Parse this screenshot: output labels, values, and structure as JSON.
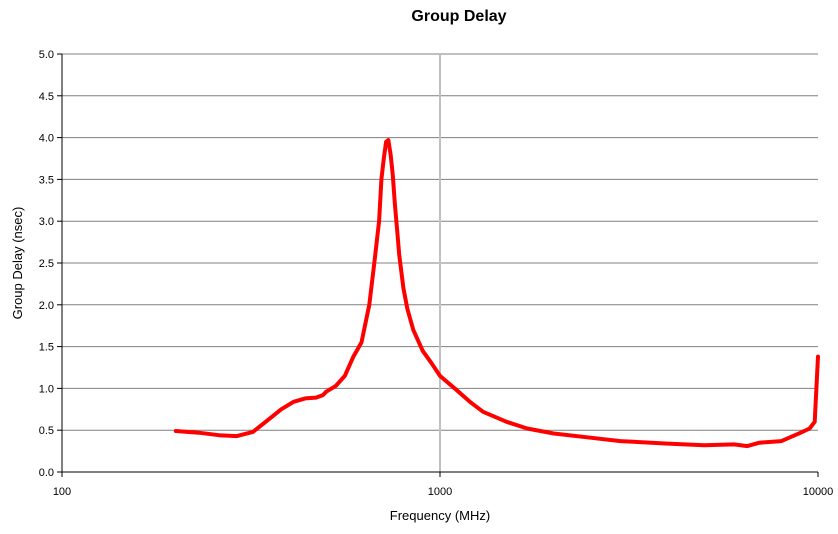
{
  "chart_data": {
    "type": "line",
    "title": "Group Delay",
    "xlabel": "Frequency (MHz)",
    "ylabel": "Group Delay (nsec)",
    "x_scale": "log",
    "xlim": [
      100,
      10000
    ],
    "ylim": [
      0,
      5
    ],
    "x_ticks": [
      "100",
      "1000",
      "10000"
    ],
    "y_ticks": [
      "0.0",
      "0.5",
      "1.0",
      "1.5",
      "2.0",
      "2.5",
      "3.0",
      "3.5",
      "4.0",
      "4.5",
      "5.0"
    ],
    "grid": "horizontal",
    "accent_color": "#ff0000",
    "series": [
      {
        "color": "#ff0000",
        "x": [
          200,
          230,
          260,
          290,
          320,
          350,
          380,
          410,
          440,
          470,
          490,
          500,
          530,
          560,
          590,
          620,
          650,
          670,
          690,
          700,
          710,
          720,
          730,
          740,
          750,
          760,
          770,
          780,
          800,
          820,
          850,
          900,
          950,
          1000,
          1100,
          1200,
          1300,
          1500,
          1700,
          2000,
          2500,
          3000,
          4000,
          5000,
          6000,
          6500,
          7000,
          8000,
          9000,
          9500,
          9800,
          10000
        ],
        "y": [
          0.49,
          0.47,
          0.44,
          0.43,
          0.48,
          0.62,
          0.75,
          0.84,
          0.88,
          0.89,
          0.92,
          0.96,
          1.03,
          1.15,
          1.38,
          1.55,
          2.0,
          2.5,
          3.0,
          3.5,
          3.75,
          3.95,
          3.97,
          3.8,
          3.55,
          3.2,
          2.9,
          2.6,
          2.2,
          1.95,
          1.7,
          1.45,
          1.3,
          1.15,
          0.99,
          0.84,
          0.72,
          0.6,
          0.52,
          0.46,
          0.41,
          0.37,
          0.34,
          0.32,
          0.33,
          0.31,
          0.35,
          0.37,
          0.47,
          0.52,
          0.6,
          1.38
        ]
      }
    ]
  }
}
